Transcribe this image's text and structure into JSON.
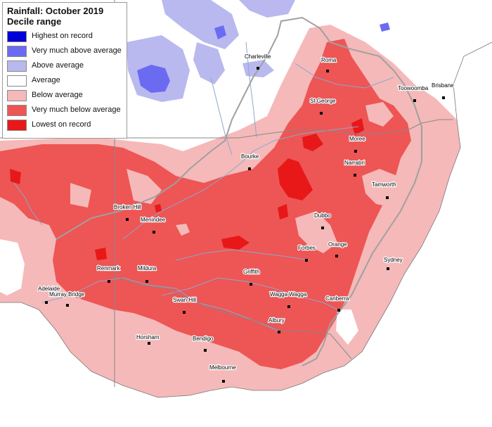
{
  "title": "Rainfall: October 2019",
  "subtitle": "Decile range",
  "legend": [
    {
      "label": "Highest on record",
      "color": "#0000d8"
    },
    {
      "label": "Very much above average",
      "color": "#6b6bf2"
    },
    {
      "label": "Above average",
      "color": "#b9b9f0"
    },
    {
      "label": "Average",
      "color": "#ffffff"
    },
    {
      "label": "Below average",
      "color": "#f5b9b9"
    },
    {
      "label": "Very much below average",
      "color": "#ee5555"
    },
    {
      "label": "Lowest on record",
      "color": "#e81818"
    }
  ],
  "colors": {
    "water": "#ffffff",
    "border": "#888888",
    "rivers": "#8aa8cc",
    "below_average": "#f5b9b9",
    "very_much_below": "#ee5555",
    "lowest": "#e81818",
    "above_average": "#b9b9f0",
    "very_much_above": "#6b6bf2"
  },
  "cities": [
    "Charleville",
    "Roma",
    "Toowoomba",
    "Brisbane",
    "St George",
    "Moree",
    "Bourke",
    "Narrabri",
    "Tamworth",
    "Broken Hill",
    "Menindee",
    "Dubbo",
    "Forbes",
    "Orange",
    "Sydney",
    "Renmark",
    "Mildura",
    "Griffith",
    "Adelaide",
    "Murray Bridge",
    "Wagga Wagga",
    "Canberra",
    "Swan Hill",
    "Albury",
    "Horsham",
    "Bendigo",
    "Melbourne"
  ]
}
